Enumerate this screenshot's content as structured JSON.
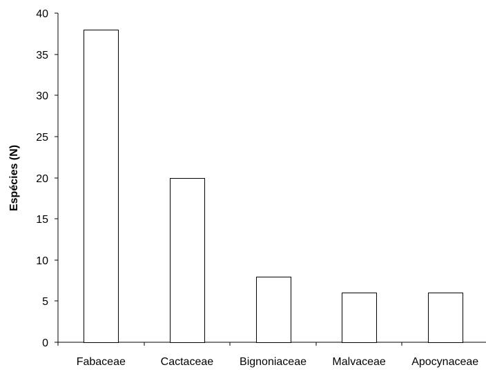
{
  "chart_data": {
    "type": "bar",
    "title": "",
    "xlabel": "",
    "ylabel": "Espécies (N)",
    "ylim": [
      0,
      40
    ],
    "yticks": [
      0,
      5,
      10,
      15,
      20,
      25,
      30,
      35,
      40
    ],
    "categories": [
      "Fabaceae",
      "Cactaceae",
      "Bignoniaceae",
      "Malvaceae",
      "Apocynaceae"
    ],
    "values": [
      38,
      20,
      8,
      6,
      6
    ],
    "grid": false,
    "legend": "none",
    "colors": {
      "bar_fill": "#ffffff",
      "bar_stroke": "#000000",
      "axis": "#000000"
    }
  }
}
